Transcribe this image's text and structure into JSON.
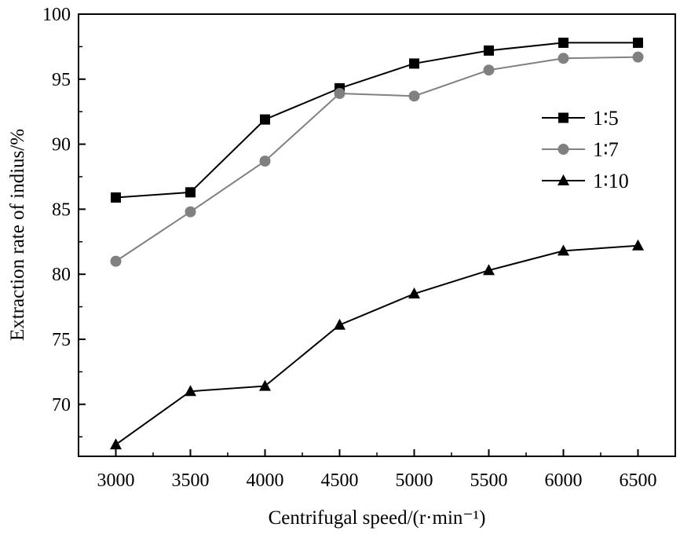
{
  "chart_data": {
    "type": "line",
    "title": "",
    "xlabel": "Centrifugal speed/(r·min⁻¹)",
    "ylabel": "Extraction rate of indius/%",
    "x": [
      3000,
      3500,
      4000,
      4500,
      5000,
      5500,
      6000,
      6500
    ],
    "xlim": [
      2750,
      6750
    ],
    "ylim": [
      66,
      100
    ],
    "x_ticks": [
      3000,
      3500,
      4000,
      4500,
      5000,
      5500,
      6000,
      6500
    ],
    "y_ticks": [
      70,
      75,
      80,
      85,
      90,
      95,
      100
    ],
    "grid": false,
    "legend_position": "right",
    "series": [
      {
        "name": "1∶5",
        "marker": "square",
        "color": "#000000",
        "values": [
          85.9,
          86.3,
          91.9,
          94.3,
          96.2,
          97.2,
          97.8,
          97.8
        ]
      },
      {
        "name": "1∶7",
        "marker": "circle",
        "color": "#808080",
        "values": [
          81.0,
          84.8,
          88.7,
          93.9,
          93.7,
          95.7,
          96.6,
          96.7
        ]
      },
      {
        "name": "1∶10",
        "marker": "triangle",
        "color": "#000000",
        "values": [
          66.9,
          71.0,
          71.4,
          76.1,
          78.5,
          80.3,
          81.8,
          82.2
        ]
      }
    ]
  }
}
